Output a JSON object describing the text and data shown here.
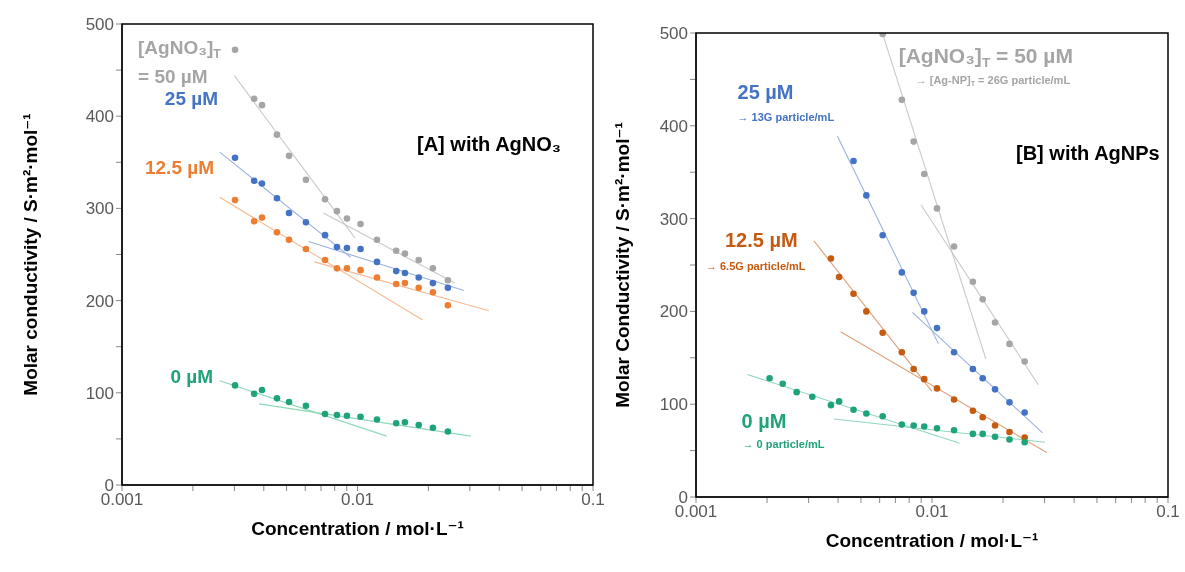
{
  "chart_data": [
    {
      "type": "scatter",
      "title": "[A] with AgNO₃",
      "xlabel": "Concentration / mol·L⁻¹",
      "ylabel": "Molar conductivity / S·m²·mol⁻¹",
      "log": "x",
      "marker": "circle",
      "xlim": [
        0.001,
        0.1
      ],
      "xticks": [
        0.001,
        {
          "value": 0.002,
          "label": null
        },
        {
          "value": 0.003,
          "label": null
        },
        {
          "value": 0.004,
          "label": null
        },
        {
          "value": 0.005,
          "label": null
        },
        {
          "value": 0.006,
          "label": null
        },
        {
          "value": 0.007,
          "label": null
        },
        {
          "value": 0.008,
          "label": null
        },
        {
          "value": 0.009,
          "label": null
        },
        0.01,
        {
          "value": 0.02,
          "label": null
        },
        {
          "value": 0.03,
          "label": null
        },
        {
          "value": 0.04,
          "label": null
        },
        {
          "value": 0.05,
          "label": null
        },
        {
          "value": 0.06,
          "label": null
        },
        {
          "value": 0.07,
          "label": null
        },
        {
          "value": 0.08,
          "label": null
        },
        {
          "value": 0.09,
          "label": null
        },
        0.1
      ],
      "ylim": [
        0,
        500
      ],
      "yticks": [
        0,
        {
          "value": 50,
          "label": null
        },
        100,
        {
          "value": 150,
          "label": null
        },
        200,
        {
          "value": 250,
          "label": null
        },
        300,
        {
          "value": 350,
          "label": null
        },
        400,
        {
          "value": 450,
          "label": null
        },
        500
      ],
      "series": [
        {
          "name": "[AgNO₃]$_{T}$\n= 50 µM",
          "color": "#a5a5a5",
          "x": [
            0.00302,
            0.00364,
            0.00393,
            0.00455,
            0.00512,
            0.00604,
            0.00728,
            0.00818,
            0.00902,
            0.0103,
            0.0121,
            0.0146,
            0.0159,
            0.0182,
            0.0209,
            0.0242
          ],
          "values": [
            472,
            419,
            412,
            380,
            357,
            331,
            310,
            297,
            289,
            283,
            266,
            254,
            251,
            244,
            235,
            222
          ]
        },
        {
          "name": "25 µM",
          "color": "#4472c4",
          "x": [
            0.00302,
            0.00364,
            0.00393,
            0.00455,
            0.00512,
            0.00604,
            0.00728,
            0.00818,
            0.00902,
            0.0103,
            0.0121,
            0.0146,
            0.0159,
            0.0182,
            0.0209,
            0.0242
          ],
          "values": [
            355,
            330,
            327,
            311,
            295,
            285,
            271,
            258,
            257,
            256,
            242,
            232,
            230,
            225,
            219,
            214
          ]
        },
        {
          "name": "12.5 µM",
          "color": "#ed7d31",
          "x": [
            0.00302,
            0.00364,
            0.00393,
            0.00455,
            0.00512,
            0.00604,
            0.00728,
            0.00818,
            0.00902,
            0.0103,
            0.0121,
            0.0146,
            0.0159,
            0.0182,
            0.0209,
            0.0242
          ],
          "values": [
            309,
            286,
            290,
            274,
            266,
            256,
            244,
            235,
            235,
            233,
            225,
            218,
            219,
            214,
            209,
            195
          ]
        },
        {
          "name": "0 µM",
          "color": "#1fa37a",
          "x": [
            0.00302,
            0.00364,
            0.00393,
            0.00455,
            0.00512,
            0.00604,
            0.00728,
            0.00818,
            0.00902,
            0.0103,
            0.0121,
            0.0146,
            0.0159,
            0.0182,
            0.0209,
            0.0242
          ],
          "values": [
            108,
            99,
            103,
            94,
            90,
            86,
            77,
            76,
            75,
            74,
            71,
            67,
            68,
            65,
            62,
            58
          ]
        },
        {
          "type": "line",
          "marker": "none",
          "color": "#c9c9c9",
          "x": [
            0.003,
            0.00975
          ],
          "values": [
            444,
            268
          ]
        },
        {
          "type": "line",
          "marker": "none",
          "color": "#c9c9c9",
          "x": [
            0.00716,
            0.0259
          ],
          "values": [
            295,
            219
          ]
        },
        {
          "type": "line",
          "marker": "none",
          "color": "#9bb3df",
          "x": [
            0.0026,
            0.00935
          ],
          "values": [
            361,
            247
          ]
        },
        {
          "type": "line",
          "marker": "none",
          "color": "#9bb3df",
          "x": [
            0.0062,
            0.0283
          ],
          "values": [
            264,
            211
          ]
        },
        {
          "type": "line",
          "marker": "none",
          "color": "#f6b992",
          "x": [
            0.0026,
            0.0189
          ],
          "values": [
            312,
            179
          ]
        },
        {
          "type": "line",
          "marker": "none",
          "color": "#f6b992",
          "x": [
            0.00657,
            0.0361
          ],
          "values": [
            242,
            189
          ]
        },
        {
          "type": "line",
          "marker": "none",
          "color": "#8fd8b8",
          "x": [
            0.0026,
            0.0133
          ],
          "values": [
            113,
            53
          ]
        },
        {
          "type": "line",
          "marker": "none",
          "color": "#8fd8b8",
          "x": [
            0.00382,
            0.0303
          ],
          "values": [
            88,
            53
          ]
        }
      ]
    },
    {
      "type": "scatter",
      "title": "[B] with AgNPs",
      "xlabel": "Concentration / mol·L⁻¹",
      "ylabel": "Molar Conductivity / S·m²·mol⁻¹",
      "log": "x",
      "marker": "circle",
      "xlim": [
        0.001,
        0.1
      ],
      "xticks": [
        0.001,
        {
          "value": 0.002,
          "label": null
        },
        {
          "value": 0.003,
          "label": null
        },
        {
          "value": 0.004,
          "label": null
        },
        {
          "value": 0.005,
          "label": null
        },
        {
          "value": 0.006,
          "label": null
        },
        {
          "value": 0.007,
          "label": null
        },
        {
          "value": 0.008,
          "label": null
        },
        {
          "value": 0.009,
          "label": null
        },
        0.01,
        {
          "value": 0.02,
          "label": null
        },
        {
          "value": 0.03,
          "label": null
        },
        {
          "value": 0.04,
          "label": null
        },
        {
          "value": 0.05,
          "label": null
        },
        {
          "value": 0.06,
          "label": null
        },
        {
          "value": 0.07,
          "label": null
        },
        {
          "value": 0.08,
          "label": null
        },
        {
          "value": 0.09,
          "label": null
        },
        0.1
      ],
      "ylim": [
        0,
        500
      ],
      "yticks": [
        0,
        {
          "value": 50,
          "label": null
        },
        100,
        {
          "value": 150,
          "label": null
        },
        200,
        {
          "value": 250,
          "label": null
        },
        300,
        {
          "value": 350,
          "label": null
        },
        400,
        {
          "value": 450,
          "label": null
        },
        500
      ],
      "annotations": [
        "→ [Ag-NP]$_{T}$ = 26G particle/mL",
        "→   13G particle/mL",
        "→   6.5G particle/mL",
        "→   0 particle/mL"
      ],
      "series": [
        {
          "name": "[AgNO₃]$_{T}$  = 50 µM",
          "color": "#a5a5a5",
          "x": [
            0.00618,
            0.00745,
            0.00836,
            0.00927,
            0.0105,
            0.0124,
            0.0149,
            0.0164,
            0.0185,
            0.0213,
            0.0247
          ],
          "values": [
            499,
            428,
            383,
            348,
            311,
            270,
            232,
            213,
            188,
            165,
            146
          ]
        },
        {
          "name": "25 µM",
          "color": "#4472c4",
          "x": [
            0.00465,
            0.00527,
            0.00618,
            0.00745,
            0.00836,
            0.00927,
            0.0105,
            0.0124,
            0.0149,
            0.0164,
            0.0185,
            0.0213,
            0.0247
          ],
          "values": [
            362,
            325,
            282,
            242,
            220,
            200,
            182,
            156,
            138,
            128,
            116,
            102,
            91
          ]
        },
        {
          "name": "12.5 µM",
          "color": "#c55a11",
          "x": [
            0.00373,
            0.00404,
            0.00465,
            0.00527,
            0.00618,
            0.00745,
            0.00836,
            0.00927,
            0.0105,
            0.0124,
            0.0149,
            0.0164,
            0.0185,
            0.0213,
            0.0247
          ],
          "values": [
            257,
            237,
            219,
            200,
            177,
            156,
            138,
            127,
            117,
            105,
            93,
            86,
            77,
            70,
            64
          ]
        },
        {
          "name": "0 µM",
          "color": "#1fa37a",
          "x": [
            0.00205,
            0.00233,
            0.00267,
            0.00311,
            0.00373,
            0.00404,
            0.00465,
            0.00527,
            0.00618,
            0.00745,
            0.00836,
            0.00927,
            0.0105,
            0.0124,
            0.0149,
            0.0164,
            0.0185,
            0.0213,
            0.0247
          ],
          "values": [
            128,
            122,
            113,
            108,
            99,
            103,
            94,
            90,
            87,
            78,
            77,
            76,
            74,
            72,
            68,
            68,
            65,
            62,
            59
          ]
        },
        {
          "type": "line",
          "marker": "none",
          "color": "#c9c9c9",
          "x": [
            0.00618,
            0.0169
          ],
          "values": [
            499,
            149
          ]
        },
        {
          "type": "line",
          "marker": "none",
          "color": "#c9c9c9",
          "x": [
            0.00898,
            0.0282
          ],
          "values": [
            315,
            121
          ]
        },
        {
          "type": "line",
          "marker": "none",
          "color": "#9bb3df",
          "x": [
            0.00397,
            0.01065
          ],
          "values": [
            389,
            165
          ]
        },
        {
          "type": "line",
          "marker": "none",
          "color": "#9bb3df",
          "x": [
            0.00826,
            0.0294
          ],
          "values": [
            199,
            69
          ]
        },
        {
          "type": "line",
          "marker": "none",
          "color": "#e0a07a",
          "x": [
            0.00316,
            0.00998
          ],
          "values": [
            276,
            114
          ]
        },
        {
          "type": "line",
          "marker": "none",
          "color": "#e0a07a",
          "x": [
            0.0041,
            0.0306
          ],
          "values": [
            178,
            48
          ]
        },
        {
          "type": "line",
          "marker": "none",
          "color": "#8fd8b8",
          "x": [
            0.00165,
            0.0131
          ],
          "values": [
            132,
            58
          ]
        },
        {
          "type": "line",
          "marker": "none",
          "color": "#8fd8b8",
          "x": [
            0.00384,
            0.0301
          ],
          "values": [
            84,
            59
          ]
        }
      ]
    }
  ]
}
